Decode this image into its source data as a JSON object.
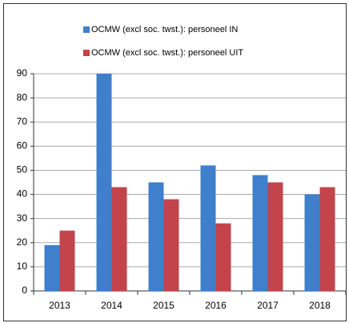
{
  "chart_data": {
    "type": "bar",
    "categories": [
      "2013",
      "2014",
      "2015",
      "2016",
      "2017",
      "2018"
    ],
    "series": [
      {
        "name": "OCMW (excl soc. twst.): personeel IN",
        "color": "#3f7fcb",
        "values": [
          19,
          90,
          45,
          52,
          48,
          40
        ]
      },
      {
        "name": "OCMW (excl soc. twst.): personeel UIT",
        "color": "#c3444b",
        "values": [
          25,
          43,
          38,
          28,
          45,
          43
        ]
      }
    ],
    "ylim": [
      0,
      90
    ],
    "yticks": [
      0,
      10,
      20,
      30,
      40,
      50,
      60,
      70,
      80,
      90
    ],
    "grid": true
  }
}
